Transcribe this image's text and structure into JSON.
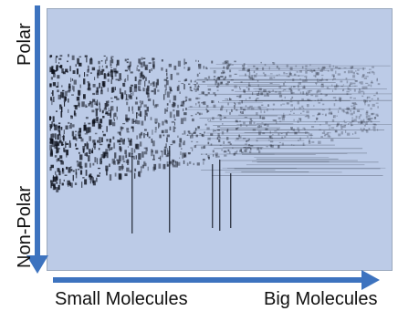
{
  "axes": {
    "y_top_label": "Polar",
    "y_bottom_label": "Non-Polar",
    "x_left_label": "Small Molecules",
    "x_right_label": "Big Molecules"
  },
  "colors": {
    "plot_background": "#bccbe7",
    "spot": "#0b0f1a",
    "arrow": "#3d73bf"
  },
  "icons": {
    "vertical_arrow": "arrow-down-icon",
    "horizontal_arrow": "arrow-right-icon"
  }
}
